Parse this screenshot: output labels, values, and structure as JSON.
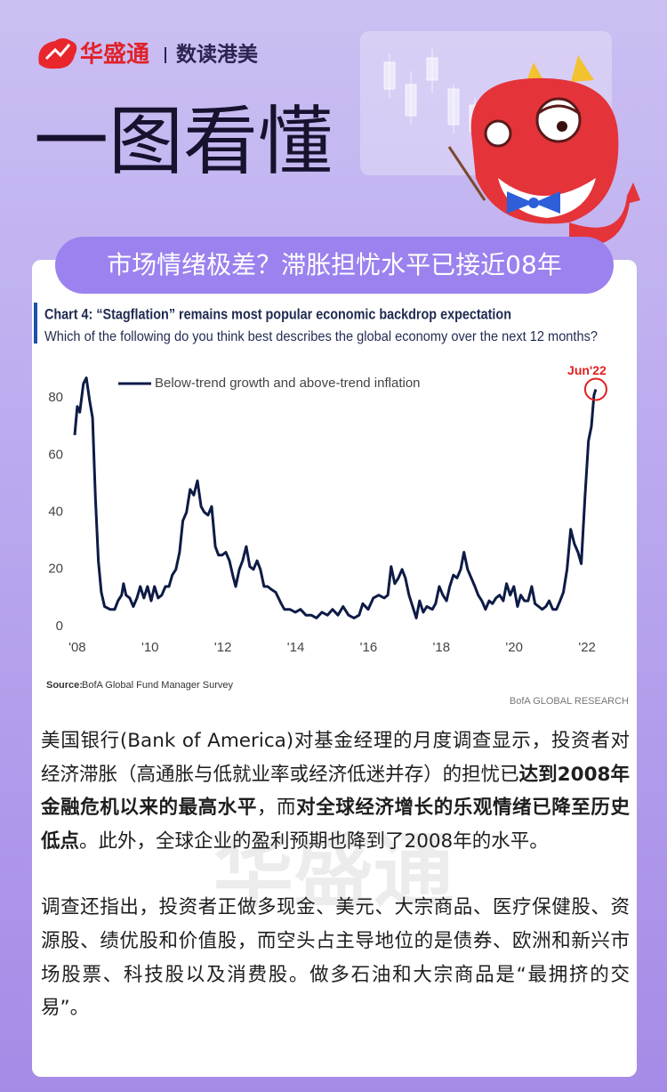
{
  "header": {
    "brand": "华盛通",
    "column": "数读港美",
    "title": "一图看懂",
    "headline": "市场情绪极差？滞胀担忧水平已接近08年"
  },
  "chart_data": {
    "type": "line",
    "title": "Chart 4: “Stagflation” remains most popular economic backdrop expectation",
    "subtitle": "Which of the following do you think best describes the global economy over the next 12 months?",
    "x": [
      2007.93,
      2008.0,
      2008.07,
      2008.17,
      2008.25,
      2008.34,
      2008.42,
      2008.5,
      2008.58,
      2008.66,
      2008.75,
      2008.9,
      2009.03,
      2009.12,
      2009.22,
      2009.27,
      2009.34,
      2009.44,
      2009.54,
      2009.64,
      2009.73,
      2009.83,
      2009.93,
      2010.03,
      2010.12,
      2010.22,
      2010.32,
      2010.42,
      2010.52,
      2010.61,
      2010.71,
      2010.81,
      2010.9,
      2011.0,
      2011.1,
      2011.2,
      2011.3,
      2011.4,
      2011.49,
      2011.59,
      2011.69,
      2011.79,
      2011.88,
      2011.98,
      2012.08,
      2012.18,
      2012.27,
      2012.35,
      2012.45,
      2012.54,
      2012.64,
      2012.74,
      2012.84,
      2012.94,
      2013.03,
      2013.13,
      2013.23,
      2013.33,
      2013.45,
      2013.6,
      2013.69,
      2013.84,
      2013.99,
      2014.13,
      2014.28,
      2014.43,
      2014.57,
      2014.72,
      2014.87,
      2015.01,
      2015.16,
      2015.3,
      2015.45,
      2015.6,
      2015.74,
      2015.84,
      2015.99,
      2016.13,
      2016.28,
      2016.43,
      2016.53,
      2016.62,
      2016.72,
      2016.82,
      2016.92,
      2017.01,
      2017.11,
      2017.21,
      2017.31,
      2017.4,
      2017.5,
      2017.6,
      2017.75,
      2017.84,
      2017.94,
      2018.04,
      2018.14,
      2018.23,
      2018.33,
      2018.43,
      2018.53,
      2018.62,
      2018.72,
      2018.82,
      2018.92,
      2019.01,
      2019.11,
      2019.21,
      2019.31,
      2019.4,
      2019.5,
      2019.6,
      2019.7,
      2019.79,
      2019.89,
      2019.99,
      2020.09,
      2020.18,
      2020.28,
      2020.38,
      2020.48,
      2020.57,
      2020.67,
      2020.77,
      2020.87,
      2020.96,
      2021.06,
      2021.16,
      2021.26,
      2021.35,
      2021.45,
      2021.55,
      2021.65,
      2021.75,
      2021.84,
      2021.94,
      2022.04,
      2022.12,
      2022.19,
      2022.24
    ],
    "series": [
      {
        "name": "Below-trend growth and above-trend inflation",
        "color": "#0d1b45",
        "values": [
          67,
          77,
          75,
          85,
          87,
          79,
          73,
          45,
          23,
          12,
          7,
          6,
          6,
          9,
          11,
          15,
          11,
          10,
          7,
          10,
          14,
          10,
          14,
          9,
          14,
          10,
          11,
          14,
          14,
          18,
          20,
          26,
          37,
          40,
          48,
          46,
          51,
          42,
          40,
          39,
          42,
          28,
          25,
          25,
          26,
          23,
          18,
          14,
          20,
          23,
          28,
          21,
          20,
          23,
          20,
          14,
          14,
          13,
          12,
          8,
          6,
          6,
          5,
          6,
          4,
          4,
          3,
          5,
          4,
          6,
          4,
          7,
          4,
          3,
          4,
          8,
          6,
          10,
          11,
          10,
          11,
          21,
          15,
          17,
          20,
          17,
          11,
          7,
          3,
          9,
          5,
          7,
          6,
          8,
          14,
          11,
          9,
          14,
          18,
          17,
          20,
          26,
          20,
          17,
          14,
          11,
          9,
          6,
          9,
          8,
          10,
          11,
          9,
          15,
          11,
          14,
          7,
          11,
          9,
          9,
          14,
          8,
          7,
          6,
          7,
          9,
          6,
          6,
          9,
          12,
          20,
          34,
          29,
          26,
          22,
          45,
          65,
          70,
          81,
          83
        ]
      }
    ],
    "xlim": [
      2007.93,
      2022.73
    ],
    "xticks": [
      {
        "value": 2008,
        "label": "'08"
      },
      {
        "value": 2010,
        "label": "'10"
      },
      {
        "value": 2012,
        "label": "'12"
      },
      {
        "value": 2014,
        "label": "'14"
      },
      {
        "value": 2016,
        "label": "'16"
      },
      {
        "value": 2018,
        "label": "'18"
      },
      {
        "value": 2020,
        "label": "'20"
      },
      {
        "value": 2022,
        "label": "'22"
      }
    ],
    "ylim": [
      0,
      90
    ],
    "yticks": [
      0,
      20,
      40,
      60,
      80
    ],
    "grid": false,
    "legend": "upper left",
    "annotation": "Jun'22",
    "annotation_color": "#e02020",
    "source_label": "Source:",
    "source": "BofA Global Fund Manager Survey",
    "credit": "BofA GLOBAL RESEARCH"
  },
  "body": {
    "paragraphs": [
      [
        {
          "text": "美国银行(Bank of America)对基金经理的月度调查显示，投资者对经济滞胀（高通胀与低就业率或经济低迷并存）的担忧已",
          "bold": false
        },
        {
          "text": "达到2008年金融危机以来的最高水平",
          "bold": true
        },
        {
          "text": "，而",
          "bold": false
        },
        {
          "text": "对全球经济增长的乐观情绪已降至历史低点",
          "bold": true
        },
        {
          "text": "。此外，全球企业的盈利预期也降到了2008年的水平。",
          "bold": false
        }
      ],
      [
        {
          "text": "调查还指出，投资者正做多现金、美元、大宗商品、医疗保健股、资源股、绩优股和价值股，而空头占主导地位的是债券、欧洲和新兴市场股票、科技股以及消费股。做多石油和大宗商品是“最拥挤的交易”。",
          "bold": false
        }
      ]
    ]
  },
  "watermark": "华盛通"
}
